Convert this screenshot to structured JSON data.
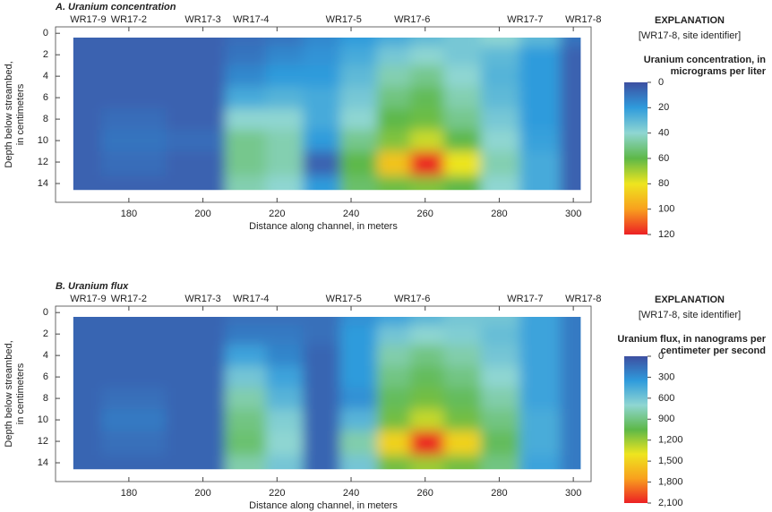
{
  "chart_data": [
    {
      "type": "contour",
      "title": "A. Uranium concentration",
      "xlabel": "Distance along channel, in meters",
      "ylabel": [
        "Depth below streambed,",
        "in centimeters"
      ],
      "xlim": [
        160.2,
        304.8
      ],
      "ylim": [
        -0.6,
        15.75
      ],
      "xticks": [
        180,
        200,
        220,
        240,
        260,
        280,
        300
      ],
      "yticks": [
        0,
        2,
        4,
        6,
        8,
        10,
        12,
        14
      ],
      "site_labels": [
        "WR17-9",
        "WR17-2",
        "WR17-3",
        "WR17-4",
        "WR17-5",
        "WR17-6",
        "WR17-7",
        "WR17-8"
      ],
      "site_x": [
        169,
        180,
        200,
        213,
        238,
        256.5,
        287,
        302.7
      ],
      "x": [
        165,
        180,
        200,
        212,
        222,
        232,
        242,
        252,
        260,
        270,
        280,
        291,
        302
      ],
      "depth": [
        0.4,
        2,
        4,
        6,
        8,
        10,
        12,
        14.6
      ],
      "z": [
        [
          5,
          5,
          5,
          8,
          10,
          15,
          20,
          25,
          30,
          35,
          40,
          30,
          10
        ],
        [
          5,
          5,
          5,
          10,
          15,
          18,
          25,
          35,
          40,
          35,
          30,
          20,
          5
        ],
        [
          5,
          5,
          5,
          15,
          20,
          20,
          30,
          45,
          50,
          40,
          28,
          20,
          5
        ],
        [
          5,
          5,
          5,
          25,
          28,
          25,
          35,
          52,
          58,
          45,
          30,
          20,
          5
        ],
        [
          5,
          8,
          5,
          40,
          40,
          25,
          40,
          60,
          62,
          50,
          35,
          20,
          5
        ],
        [
          5,
          10,
          8,
          50,
          45,
          20,
          50,
          65,
          75,
          60,
          40,
          22,
          5
        ],
        [
          5,
          8,
          5,
          50,
          45,
          5,
          60,
          90,
          120,
          80,
          45,
          25,
          5
        ],
        [
          5,
          5,
          5,
          45,
          40,
          20,
          55,
          62,
          65,
          60,
          40,
          25,
          5
        ]
      ],
      "legend_title": "EXPLANATION",
      "legend_note": "[WR17-8, site identifier]",
      "colorbar_title": [
        "Uranium concentration, in",
        "micrograms per liter"
      ],
      "clim": [
        0,
        120
      ],
      "cticks": [
        0,
        20,
        40,
        60,
        80,
        100,
        120
      ],
      "colormap": [
        "#3d4fa1",
        "#2f9bdc",
        "#8fd6d2",
        "#5db848",
        "#eee51f",
        "#f8a01e",
        "#ec2024"
      ]
    },
    {
      "type": "contour",
      "title": "B. Uranium flux",
      "xlabel": "Distance along channel, in meters",
      "ylabel": [
        "Depth below streambed,",
        "in centimeters"
      ],
      "xlim": [
        160.2,
        304.8
      ],
      "ylim": [
        -0.6,
        15.75
      ],
      "xticks": [
        180,
        200,
        220,
        240,
        260,
        280,
        300
      ],
      "yticks": [
        0,
        2,
        4,
        6,
        8,
        10,
        12,
        14
      ],
      "site_labels": [
        "WR17-9",
        "WR17-2",
        "WR17-3",
        "WR17-4",
        "WR17-5",
        "WR17-6",
        "WR17-7",
        "WR17-8"
      ],
      "site_x": [
        169,
        180,
        200,
        213,
        238,
        256.5,
        287,
        302.7
      ],
      "x": [
        165,
        180,
        200,
        212,
        222,
        232,
        242,
        252,
        260,
        270,
        280,
        291,
        302
      ],
      "depth": [
        0.4,
        2,
        4,
        6,
        8,
        10,
        12,
        14.6
      ],
      "z": [
        [
          100,
          100,
          100,
          150,
          150,
          150,
          300,
          400,
          500,
          600,
          600,
          400,
          200
        ],
        [
          100,
          100,
          100,
          200,
          200,
          150,
          350,
          600,
          700,
          650,
          550,
          400,
          200
        ],
        [
          100,
          100,
          100,
          400,
          250,
          100,
          350,
          800,
          900,
          800,
          600,
          400,
          200
        ],
        [
          100,
          100,
          100,
          600,
          400,
          100,
          350,
          900,
          1000,
          900,
          700,
          400,
          200
        ],
        [
          100,
          150,
          100,
          800,
          500,
          100,
          300,
          1000,
          1100,
          1000,
          800,
          400,
          200
        ],
        [
          100,
          200,
          100,
          900,
          650,
          100,
          500,
          1100,
          1300,
          1100,
          900,
          450,
          200
        ],
        [
          100,
          150,
          100,
          950,
          700,
          100,
          800,
          1500,
          2100,
          1500,
          1000,
          450,
          200
        ],
        [
          100,
          100,
          100,
          800,
          600,
          100,
          600,
          1100,
          1200,
          1100,
          900,
          400,
          200
        ]
      ],
      "legend_title": "EXPLANATION",
      "legend_note": "[WR17-8, site identifier]",
      "colorbar_title": [
        "Uranium flux, in nanograms per",
        "centimeter per second"
      ],
      "clim": [
        0,
        2100
      ],
      "cticks": [
        0,
        300,
        600,
        900,
        {
          "value": 1200,
          "label": "1,200"
        },
        {
          "value": 1500,
          "label": "1,500"
        },
        {
          "value": 1800,
          "label": "1,800"
        },
        {
          "value": 2100,
          "label": "2,100"
        }
      ],
      "colormap": [
        "#3d4fa1",
        "#2f9bdc",
        "#8fd6d2",
        "#5db848",
        "#eee51f",
        "#f8a01e",
        "#ec2024"
      ]
    }
  ]
}
